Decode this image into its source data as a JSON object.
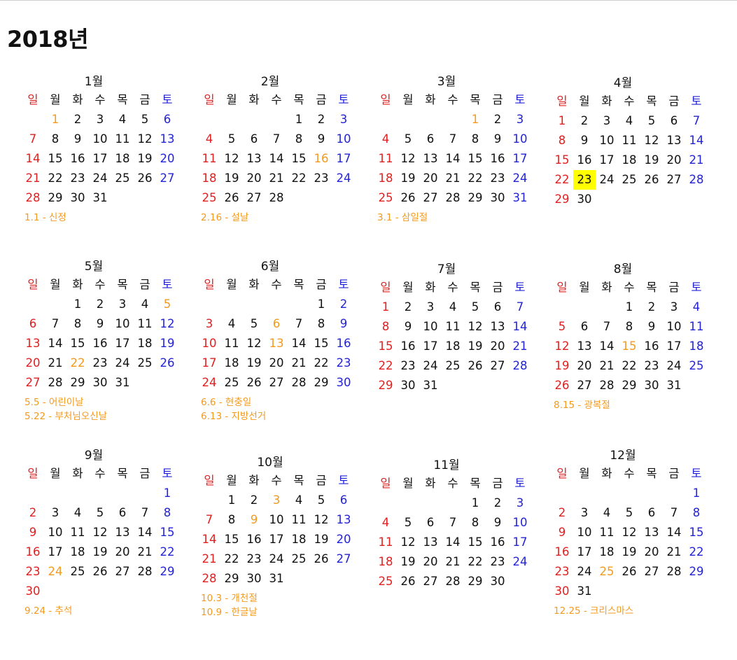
{
  "title": "2018년",
  "weekdays": [
    "일",
    "월",
    "화",
    "수",
    "목",
    "금",
    "토"
  ],
  "colors": {
    "sunday": "#e02020",
    "saturday": "#2323d6",
    "holiday": "#f39a1e",
    "today_bg": "#ffff00"
  },
  "today": {
    "month": 4,
    "day": 23
  },
  "months": [
    {
      "name": "1월",
      "offset": 1,
      "days": 31,
      "holidays": [
        1
      ],
      "notes": [
        "1.1 - 신정"
      ]
    },
    {
      "name": "2월",
      "offset": 4,
      "days": 28,
      "holidays": [
        16
      ],
      "notes": [
        "2.16 - 설날"
      ]
    },
    {
      "name": "3월",
      "offset": 4,
      "days": 31,
      "holidays": [
        1
      ],
      "notes": [
        "3.1 - 삼일절"
      ]
    },
    {
      "name": "4월",
      "offset": 0,
      "days": 30,
      "holidays": [],
      "notes": []
    },
    {
      "name": "5월",
      "offset": 2,
      "days": 31,
      "holidays": [
        5,
        22
      ],
      "notes": [
        "5.5 - 어린이날",
        "5.22 - 부처님오신날"
      ]
    },
    {
      "name": "6월",
      "offset": 5,
      "days": 30,
      "holidays": [
        6,
        13
      ],
      "notes": [
        "6.6 - 현충일",
        "6.13 - 지방선거"
      ]
    },
    {
      "name": "7월",
      "offset": 0,
      "days": 31,
      "holidays": [],
      "notes": []
    },
    {
      "name": "8월",
      "offset": 3,
      "days": 31,
      "holidays": [
        15
      ],
      "notes": [
        "8.15 - 광복절"
      ]
    },
    {
      "name": "9월",
      "offset": 6,
      "days": 30,
      "holidays": [
        24
      ],
      "notes": [
        "9.24 - 추석"
      ]
    },
    {
      "name": "10월",
      "offset": 1,
      "days": 31,
      "holidays": [
        3,
        9
      ],
      "notes": [
        "10.3 - 개천절",
        "10.9 - 한글날"
      ]
    },
    {
      "name": "11월",
      "offset": 4,
      "days": 30,
      "holidays": [],
      "notes": []
    },
    {
      "name": "12월",
      "offset": 6,
      "days": 31,
      "holidays": [
        25
      ],
      "notes": [
        "12.25 - 크리스마스"
      ]
    }
  ]
}
